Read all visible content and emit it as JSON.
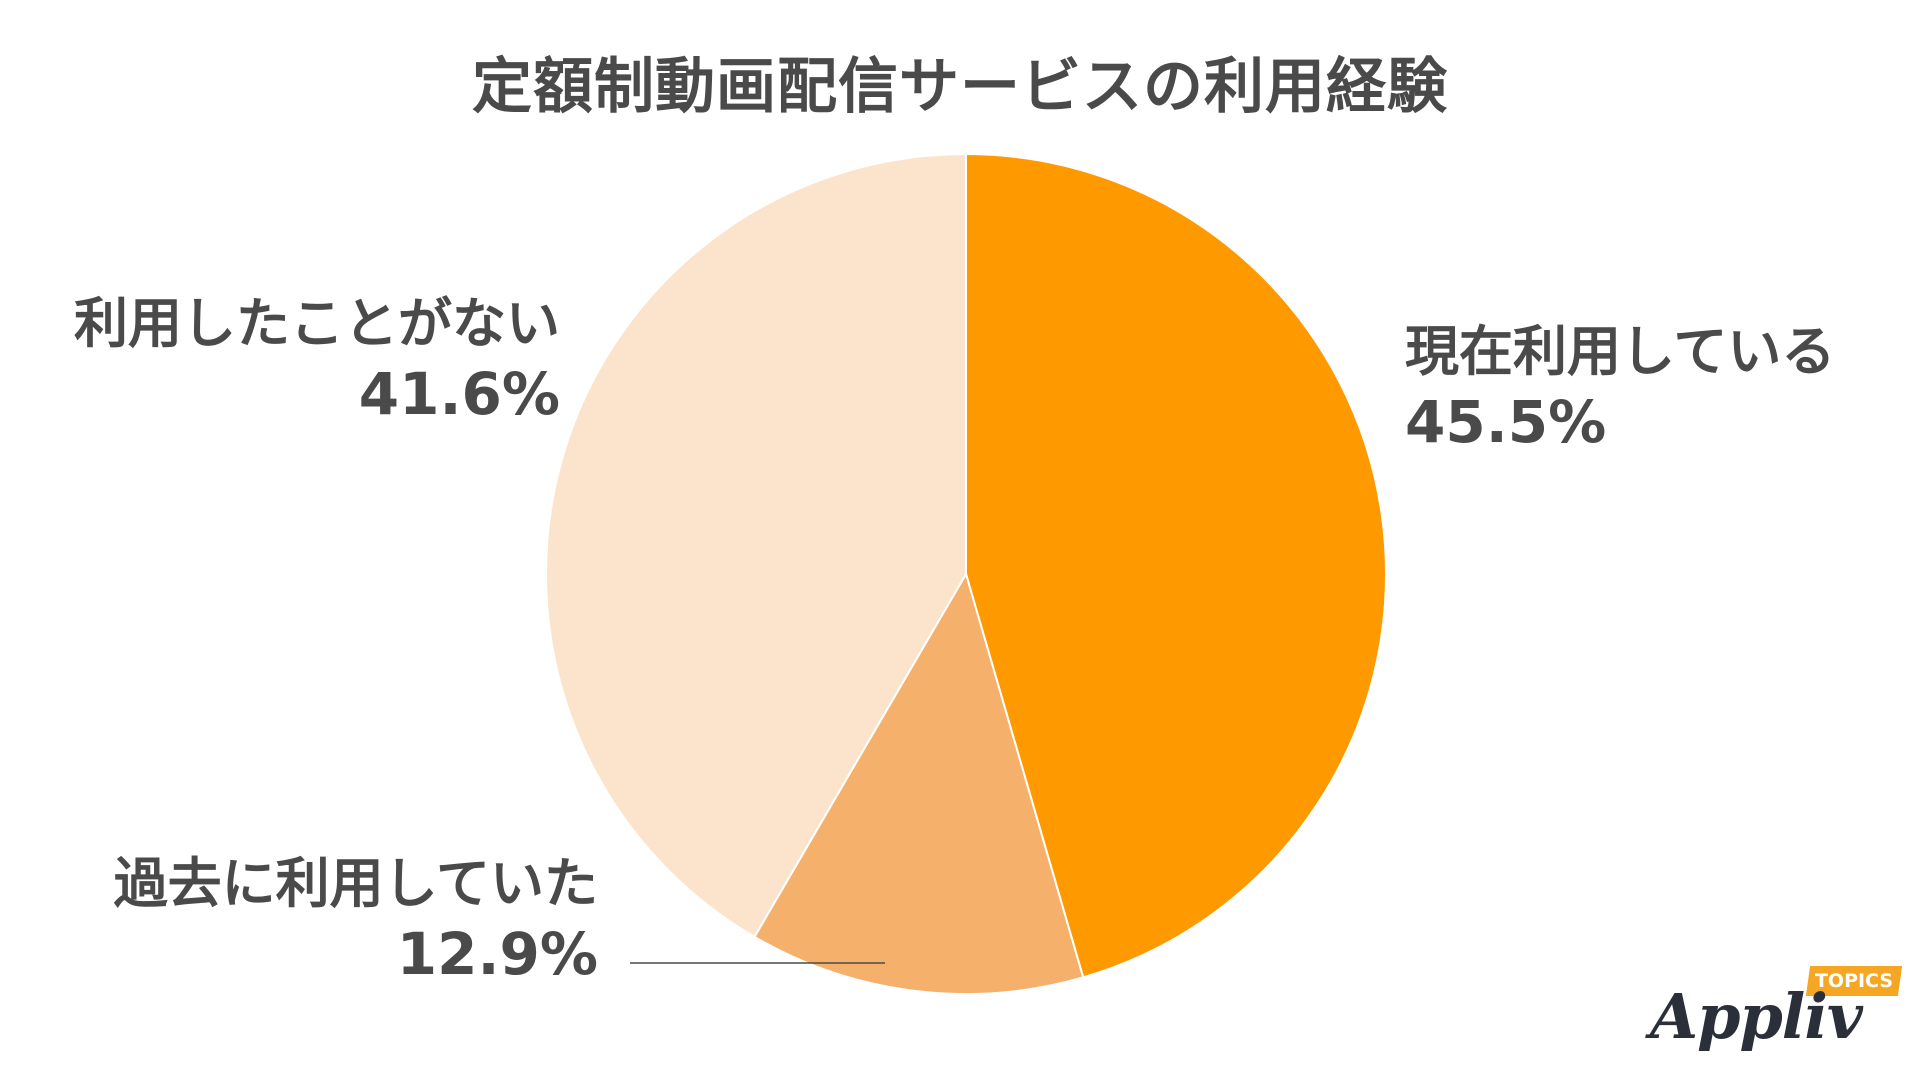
{
  "chart_data": {
    "type": "pie",
    "title": "定額制動画配信サービスの利用経験",
    "slices": [
      {
        "label": "現在利用している",
        "value": 45.5,
        "display": "45.5%",
        "color": "#ff9900"
      },
      {
        "label": "過去に利用していた",
        "value": 12.9,
        "display": "12.9%",
        "color": "#f5b06b"
      },
      {
        "label": "利用したことがない",
        "value": 41.6,
        "display": "41.6%",
        "color": "#fbe4cb"
      }
    ],
    "start": "12 o'clock",
    "direction": "clockwise",
    "legend": "none"
  },
  "logo": {
    "text": "Appliv",
    "tag": "TOPICS",
    "tag_color": "#f5a623",
    "text_color": "#2b2f3a"
  }
}
